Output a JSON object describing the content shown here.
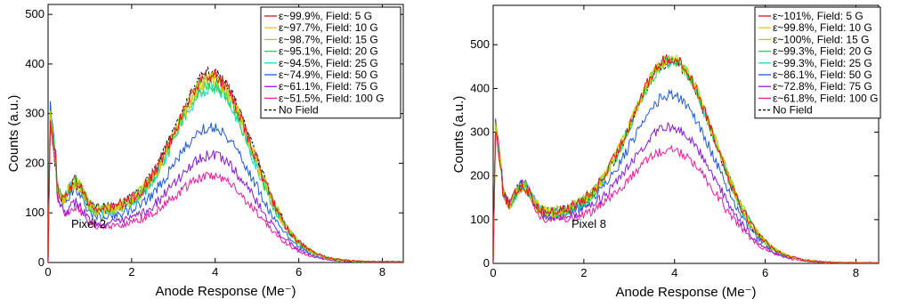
{
  "chart_data": [
    {
      "type": "line",
      "xlabel": "Anode Response (Me⁻)",
      "ylabel": "Counts (a.u.)",
      "xlim": [
        0,
        8.5
      ],
      "ylim": [
        0,
        520
      ],
      "xticks": [
        "0",
        "2",
        "4",
        "6",
        "8"
      ],
      "yticks": [
        "0",
        "100",
        "200",
        "300",
        "400",
        "500"
      ],
      "annotation": "Pixel 2",
      "legend_position": "top-right",
      "series": [
        {
          "name": "ε~99.9%, Field: 5 G",
          "color": "#e0102a",
          "params": {
            "p0": 300,
            "bumpA": 60,
            "dip": 160,
            "peak": 385,
            "noise": 12
          }
        },
        {
          "name": "ε~97.7%, Field: 10 G",
          "color": "#e8c800",
          "params": {
            "p0": 300,
            "bumpA": 58,
            "dip": 158,
            "peak": 376,
            "noise": 12
          }
        },
        {
          "name": "ε~98.7%, Field: 15 G",
          "color": "#a6d400",
          "params": {
            "p0": 300,
            "bumpA": 58,
            "dip": 158,
            "peak": 380,
            "noise": 12
          }
        },
        {
          "name": "ε~95.1%, Field: 20 G",
          "color": "#1ed84a",
          "params": {
            "p0": 300,
            "bumpA": 60,
            "dip": 157,
            "peak": 366,
            "noise": 12
          }
        },
        {
          "name": "ε~94.5%, Field: 25 G",
          "color": "#12d6d6",
          "params": {
            "p0": 305,
            "bumpA": 62,
            "dip": 156,
            "peak": 360,
            "noise": 12
          }
        },
        {
          "name": "ε~74.9%, Field: 50 G",
          "color": "#1e5ae0",
          "params": {
            "p0": 318,
            "bumpA": 58,
            "dip": 140,
            "peak": 280,
            "noise": 10
          }
        },
        {
          "name": "ε~61.1%, Field: 75 G",
          "color": "#8a1ad6",
          "params": {
            "p0": 295,
            "bumpA": 44,
            "dip": 118,
            "peak": 222,
            "noise": 9
          }
        },
        {
          "name": "ε~51.5%, Field: 100 G",
          "color": "#ee1c9c",
          "params": {
            "p0": 285,
            "bumpA": 40,
            "dip": 110,
            "peak": 180,
            "noise": 8
          }
        },
        {
          "name": "No Field",
          "color": "#000000",
          "dashed": true,
          "params": {
            "p0": 285,
            "bumpA": 50,
            "dip": 160,
            "peak": 390,
            "noise": 12
          }
        }
      ]
    },
    {
      "type": "line",
      "xlabel": "Anode Response (Me⁻)",
      "ylabel": "Counts (a.u.)",
      "xlim": [
        0,
        8.5
      ],
      "ylim": [
        0,
        590
      ],
      "xticks": [
        "0",
        "2",
        "4",
        "6",
        "8"
      ],
      "yticks": [
        "0",
        "100",
        "200",
        "300",
        "400",
        "500"
      ],
      "annotation": "Pixel 8",
      "legend_position": "top-right",
      "series": [
        {
          "name": "ε~101%,  Field: 5 G",
          "color": "#e0102a",
          "params": {
            "p0": 315,
            "bumpA": 62,
            "dip": 175,
            "peak": 478,
            "noise": 12
          }
        },
        {
          "name": "ε~99.8%, Field: 10 G",
          "color": "#e8c800",
          "params": {
            "p0": 315,
            "bumpA": 62,
            "dip": 175,
            "peak": 476,
            "noise": 12
          }
        },
        {
          "name": "ε~100%,  Field: 15 G",
          "color": "#a6d400",
          "params": {
            "p0": 315,
            "bumpA": 62,
            "dip": 175,
            "peak": 478,
            "noise": 12
          }
        },
        {
          "name": "ε~99.3%, Field: 20 G",
          "color": "#1ed84a",
          "params": {
            "p0": 312,
            "bumpA": 62,
            "dip": 172,
            "peak": 470,
            "noise": 12
          }
        },
        {
          "name": "ε~99.3%, Field: 25 G",
          "color": "#12d6d6",
          "params": {
            "p0": 312,
            "bumpA": 64,
            "dip": 172,
            "peak": 472,
            "noise": 12
          }
        },
        {
          "name": "ε~86.1%, Field: 50 G",
          "color": "#1e5ae0",
          "params": {
            "p0": 320,
            "bumpA": 74,
            "dip": 168,
            "peak": 395,
            "noise": 11
          }
        },
        {
          "name": "ε~72.8%, Field: 75 G",
          "color": "#8a1ad6",
          "params": {
            "p0": 320,
            "bumpA": 80,
            "dip": 160,
            "peak": 320,
            "noise": 10
          }
        },
        {
          "name": "ε~61.8%, Field: 100 G",
          "color": "#ee1c9c",
          "params": {
            "p0": 330,
            "bumpA": 85,
            "dip": 150,
            "peak": 268,
            "noise": 9
          }
        },
        {
          "name": "No Field",
          "color": "#000000",
          "dashed": true,
          "params": {
            "p0": 315,
            "bumpA": 62,
            "dip": 175,
            "peak": 472,
            "noise": 12
          }
        }
      ]
    }
  ]
}
